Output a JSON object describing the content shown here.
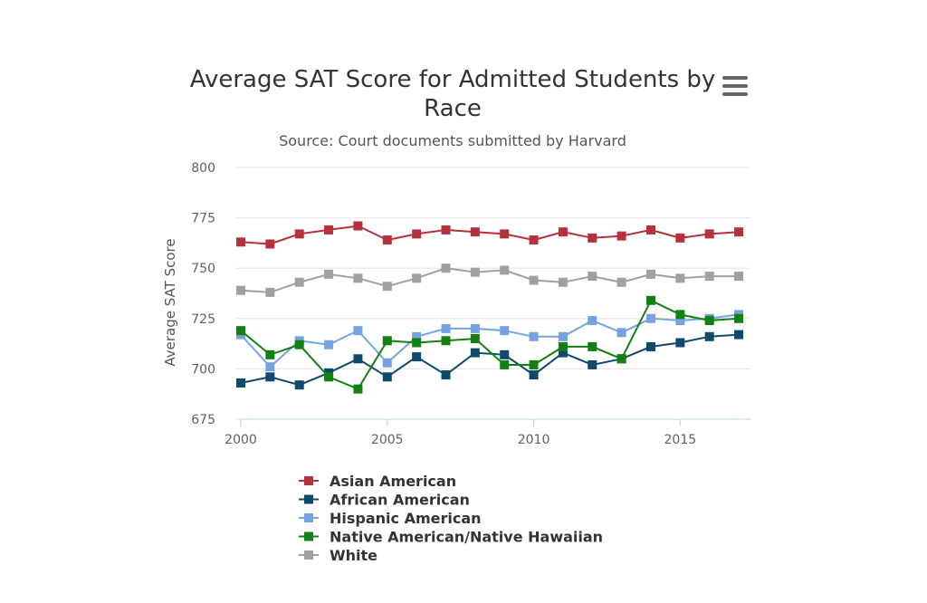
{
  "chart_data": {
    "type": "line",
    "title": "Average SAT Score for Admitted Students by Race",
    "subtitle": "Source: Court documents submitted by Harvard",
    "xlabel": "",
    "ylabel": "Average SAT Score",
    "x": [
      2000,
      2001,
      2002,
      2003,
      2004,
      2005,
      2006,
      2007,
      2008,
      2009,
      2010,
      2011,
      2012,
      2013,
      2014,
      2015,
      2016,
      2017
    ],
    "xticks": [
      2000,
      2005,
      2010,
      2015
    ],
    "yticks": [
      675,
      700,
      725,
      750,
      775,
      800
    ],
    "xlim": [
      2000,
      2017.4
    ],
    "ylim": [
      675,
      800
    ],
    "grid": true,
    "legend_position": "bottom-left",
    "series": [
      {
        "name": "Asian American",
        "color": "#b5313d",
        "values": [
          763,
          762,
          767,
          769,
          771,
          764,
          767,
          769,
          768,
          767,
          764,
          768,
          765,
          766,
          769,
          765,
          767,
          768
        ]
      },
      {
        "name": "African American",
        "color": "#0d4a6b",
        "values": [
          693,
          696,
          692,
          698,
          705,
          696,
          706,
          697,
          708,
          707,
          697,
          708,
          702,
          705,
          711,
          713,
          716,
          717
        ]
      },
      {
        "name": "Hispanic American",
        "color": "#75a3e0",
        "values": [
          717,
          701,
          714,
          712,
          719,
          703,
          716,
          720,
          720,
          719,
          716,
          716,
          724,
          718,
          725,
          724,
          725,
          727
        ]
      },
      {
        "name": "Native American/Native Hawaiian",
        "color": "#128012",
        "values": [
          719,
          707,
          712,
          696,
          690,
          714,
          713,
          714,
          715,
          702,
          702,
          711,
          711,
          705,
          734,
          727,
          724,
          725
        ]
      },
      {
        "name": "White",
        "color": "#a0a0a0",
        "values": [
          739,
          738,
          743,
          747,
          745,
          741,
          745,
          750,
          748,
          749,
          744,
          743,
          746,
          743,
          747,
          745,
          746,
          746
        ]
      }
    ]
  },
  "menu": {
    "icon": "hamburger-menu-icon"
  }
}
